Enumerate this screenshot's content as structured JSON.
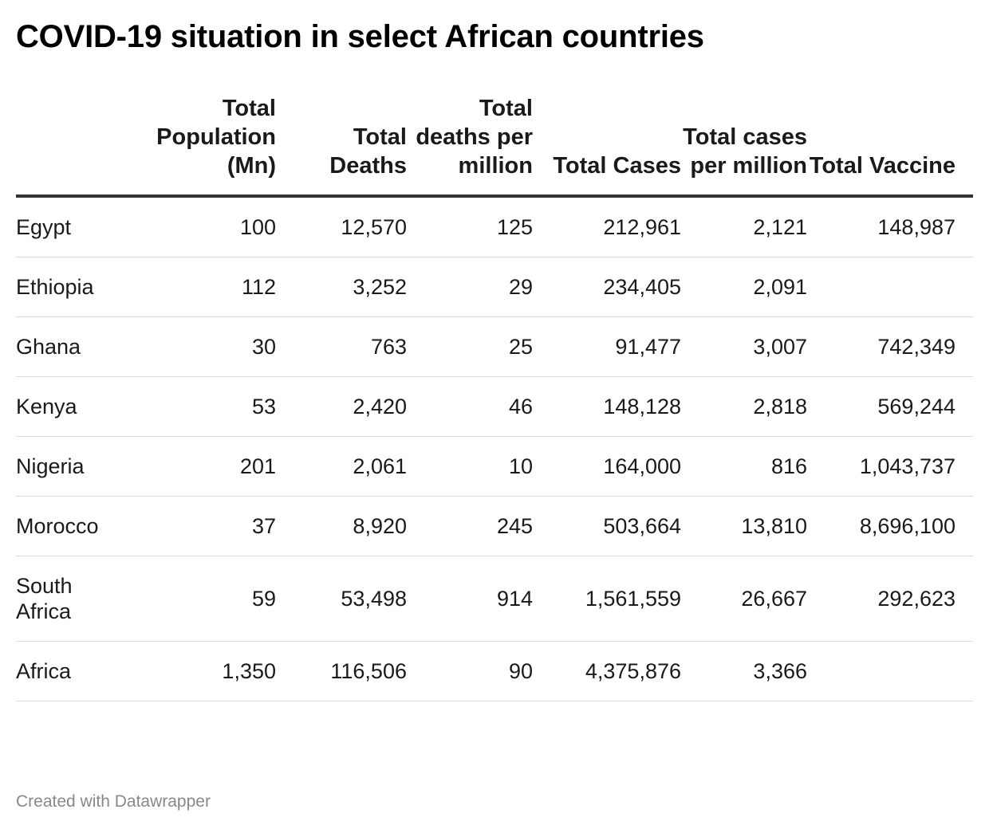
{
  "title": "COVID-19 situation in select African countries",
  "chart_data": {
    "type": "table",
    "title": "COVID-19 situation in select African countries",
    "columns": [
      "",
      "Total Population (Mn)",
      "Total Deaths",
      "Total deaths per million",
      "Total Cases",
      "Total cases per million",
      "Total Vaccine"
    ],
    "rows": [
      [
        "Egypt",
        "100",
        "12,570",
        "125",
        "212,961",
        "2,121",
        "148,987"
      ],
      [
        "Ethiopia",
        "112",
        "3,252",
        "29",
        "234,405",
        "2,091",
        ""
      ],
      [
        "Ghana",
        "30",
        "763",
        "25",
        "91,477",
        "3,007",
        "742,349"
      ],
      [
        "Kenya",
        "53",
        "2,420",
        "46",
        "148,128",
        "2,818",
        "569,244"
      ],
      [
        "Nigeria",
        "201",
        "2,061",
        "10",
        "164,000",
        "816",
        "1,043,737"
      ],
      [
        "Morocco",
        "37",
        "8,920",
        "245",
        "503,664",
        "13,810",
        "8,696,100"
      ],
      [
        "South Africa",
        "59",
        "53,498",
        "914",
        "1,561,559",
        "26,667",
        "292,623"
      ],
      [
        "Africa",
        "1,350",
        "116,506",
        "90",
        "4,375,876",
        "3,366",
        ""
      ]
    ]
  },
  "footer": "Created with Datawrapper",
  "colors": {
    "header_rule": "#333333",
    "row_rule": "#dddddd",
    "footer_text": "#888888"
  }
}
